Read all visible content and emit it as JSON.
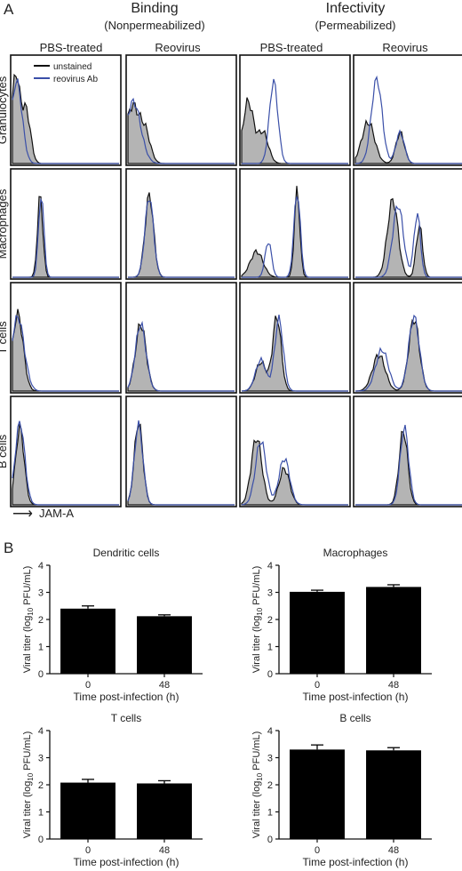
{
  "panel_a": {
    "label": "A",
    "groups": [
      {
        "title": "Binding",
        "subtitle": "(Nonpermeabilized)"
      },
      {
        "title": "Infectivity",
        "subtitle": "(Permeabilized)"
      }
    ],
    "columns": [
      "PBS-treated",
      "Reovirus",
      "PBS-treated",
      "Reovirus"
    ],
    "rows": [
      "Granulocytes",
      "Macrophages",
      "T cells",
      "B cells"
    ],
    "legend": [
      "unstained",
      "reovirus Ab"
    ],
    "axis_label": "JAM-A",
    "axis_arrow": "⟶"
  },
  "panel_b": {
    "label": "B",
    "ylabel_prefix": "Viral titer (log",
    "ylabel_sub": "10",
    "ylabel_suffix": " PFU/mL)",
    "xlabel": "Time post-infection (h)"
  },
  "colors": {
    "unstained": "#111111",
    "reovirus_ab": "#3a4fa8",
    "fill": "#b4b4b4",
    "bar": "#000000"
  },
  "chart_data": [
    {
      "type": "bar",
      "title": "Dendritic cells",
      "categories": [
        "0",
        "48"
      ],
      "values": [
        2.4,
        2.12
      ],
      "errors": [
        0.1,
        0.05
      ],
      "ylim": [
        0,
        4
      ],
      "yticks": [
        "0",
        "1",
        "2",
        "3",
        "4"
      ]
    },
    {
      "type": "bar",
      "title": "Macrophages",
      "categories": [
        "0",
        "48"
      ],
      "values": [
        3.02,
        3.2
      ],
      "errors": [
        0.06,
        0.08
      ],
      "ylim": [
        0,
        4
      ],
      "yticks": [
        "0",
        "1",
        "2",
        "3",
        "4"
      ]
    },
    {
      "type": "bar",
      "title": "T cells",
      "categories": [
        "0",
        "48"
      ],
      "values": [
        2.08,
        2.05
      ],
      "errors": [
        0.12,
        0.1
      ],
      "ylim": [
        0,
        4
      ],
      "yticks": [
        "0",
        "1",
        "2",
        "3",
        "4"
      ]
    },
    {
      "type": "bar",
      "title": "B cells",
      "categories": [
        "0",
        "48"
      ],
      "values": [
        3.3,
        3.27
      ],
      "errors": [
        0.17,
        0.1
      ],
      "ylim": [
        0,
        4
      ],
      "yticks": [
        "0",
        "1",
        "2",
        "3",
        "4"
      ]
    }
  ]
}
